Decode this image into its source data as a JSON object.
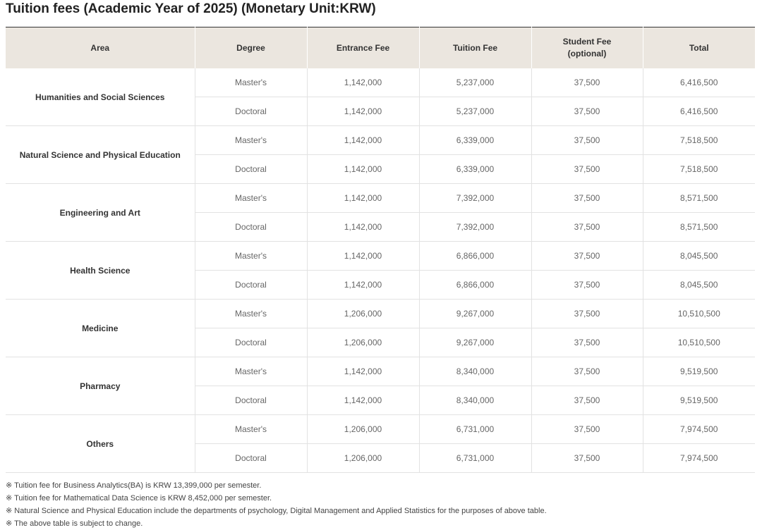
{
  "title": "Tuition fees (Academic Year of 2025) (Monetary Unit:KRW)",
  "table": {
    "header": [
      "Area",
      "Degree",
      "Entrance Fee",
      "Tuition Fee",
      "Student Fee (optional)",
      "Total"
    ],
    "rows": [
      {
        "area": "Humanities and Social Sciences",
        "degrees": [
          [
            "Master's",
            "1,142,000",
            "5,237,000",
            "37,500",
            "6,416,500"
          ],
          [
            "Doctoral",
            "1,142,000",
            "5,237,000",
            "37,500",
            "6,416,500"
          ]
        ]
      },
      {
        "area": "Natural Science and Physical Education",
        "degrees": [
          [
            "Master's",
            "1,142,000",
            "6,339,000",
            "37,500",
            "7,518,500"
          ],
          [
            "Doctoral",
            "1,142,000",
            "6,339,000",
            "37,500",
            "7,518,500"
          ]
        ]
      },
      {
        "area": "Engineering and Art",
        "degrees": [
          [
            "Master's",
            "1,142,000",
            "7,392,000",
            "37,500",
            "8,571,500"
          ],
          [
            "Doctoral",
            "1,142,000",
            "7,392,000",
            "37,500",
            "8,571,500"
          ]
        ]
      },
      {
        "area": "Health Science",
        "degrees": [
          [
            "Master's",
            "1,142,000",
            "6,866,000",
            "37,500",
            "8,045,500"
          ],
          [
            "Doctoral",
            "1,142,000",
            "6,866,000",
            "37,500",
            "8,045,500"
          ]
        ]
      },
      {
        "area": "Medicine",
        "degrees": [
          [
            "Master's",
            "1,206,000",
            "9,267,000",
            "37,500",
            "10,510,500"
          ],
          [
            "Doctoral",
            "1,206,000",
            "9,267,000",
            "37,500",
            "10,510,500"
          ]
        ]
      },
      {
        "area": "Pharmacy",
        "degrees": [
          [
            "Master's",
            "1,142,000",
            "8,340,000",
            "37,500",
            "9,519,500"
          ],
          [
            "Doctoral",
            "1,142,000",
            "8,340,000",
            "37,500",
            "9,519,500"
          ]
        ]
      },
      {
        "area": "Others",
        "degrees": [
          [
            "Master's",
            "1,206,000",
            "6,731,000",
            "37,500",
            "7,974,500"
          ],
          [
            "Doctoral",
            "1,206,000",
            "6,731,000",
            "37,500",
            "7,974,500"
          ]
        ]
      }
    ]
  },
  "notes": [
    "※ Tuition fee for Business Analytics(BA) is KRW 13,399,000 per semester.",
    "※ Tuition fee for Mathematical Data Science is KRW 8,452,000 per semester.",
    "※ Natural Science and Physical Education include the departments of psychology, Digital Management and Applied Statistics for the purposes of above table.",
    "※ The above table is subject to change."
  ]
}
